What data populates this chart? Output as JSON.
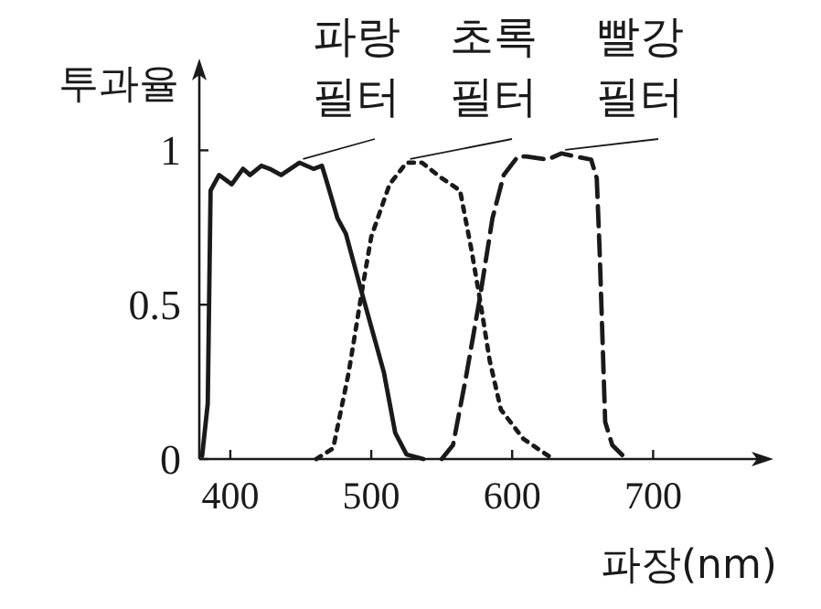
{
  "chart_data": {
    "type": "line",
    "xlabel": "파장(nm)",
    "ylabel": "투과율",
    "xlim": [
      378,
      775
    ],
    "ylim": [
      0,
      1.25
    ],
    "xticks": [
      400,
      500,
      600,
      700
    ],
    "yticks": [
      0,
      0.5,
      1
    ],
    "grid": false,
    "marker": "none",
    "series": [
      {
        "name": "파랑 필터",
        "color": "#1a1a1a",
        "line_style": "solid",
        "x": [
          380,
          384,
          386,
          392,
          401,
          409,
          414,
          422,
          428,
          436,
          449,
          459,
          465,
          469,
          476,
          482,
          492,
          509,
          517,
          525,
          537
        ],
        "values": [
          0.01,
          0.18,
          0.87,
          0.92,
          0.89,
          0.94,
          0.92,
          0.95,
          0.94,
          0.92,
          0.96,
          0.94,
          0.95,
          0.89,
          0.78,
          0.73,
          0.56,
          0.28,
          0.085,
          0.015,
          0
        ]
      },
      {
        "name": "초록 필터",
        "color": "#1a1a1a",
        "line_style": "dotted",
        "x": [
          461,
          473,
          484,
          494,
          500,
          513,
          525,
          536,
          550,
          563,
          571,
          577,
          584,
          592,
          608,
          629
        ],
        "values": [
          0,
          0.035,
          0.28,
          0.56,
          0.72,
          0.89,
          0.96,
          0.96,
          0.91,
          0.87,
          0.68,
          0.52,
          0.32,
          0.16,
          0.065,
          0
        ]
      },
      {
        "name": "빨강 필터",
        "color": "#1a1a1a",
        "line_style": "dashed",
        "x": [
          550,
          558,
          567,
          577,
          586,
          594,
          604,
          610,
          625,
          635,
          645,
          656,
          660,
          662,
          666,
          671,
          681
        ],
        "values": [
          0,
          0.045,
          0.26,
          0.52,
          0.78,
          0.92,
          0.98,
          0.98,
          0.97,
          0.99,
          0.98,
          0.97,
          0.91,
          0.68,
          0.12,
          0.045,
          0
        ]
      }
    ]
  }
}
